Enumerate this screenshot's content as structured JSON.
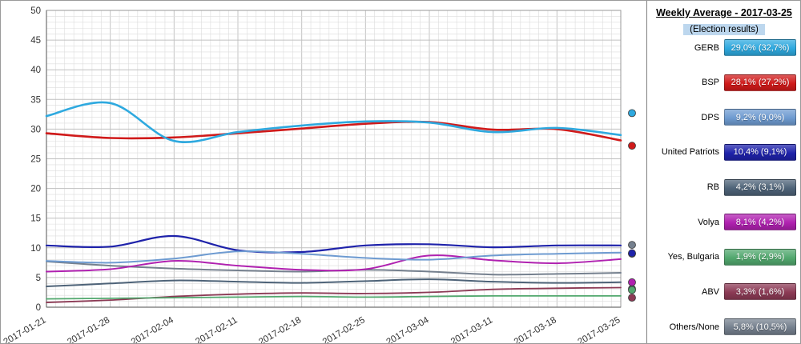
{
  "legend": {
    "title": "Weekly Average - 2017-03-25",
    "subtitle": "(Election results)",
    "entries": [
      {
        "label": "GERB",
        "value": "29,0% (32,7%)"
      },
      {
        "label": "BSP",
        "value": "28,1% (27,2%)"
      },
      {
        "label": "DPS",
        "value": "9,2% (9,0%)"
      },
      {
        "label": "United Patriots",
        "value": "10,4% (9,1%)"
      },
      {
        "label": "RB",
        "value": "4,2% (3,1%)"
      },
      {
        "label": "Volya",
        "value": "8,1% (4,2%)"
      },
      {
        "label": "Yes, Bulgaria",
        "value": "1,9% (2,9%)"
      },
      {
        "label": "ABV",
        "value": "3,3% (1,6%)"
      },
      {
        "label": "Others/None",
        "value": "5,8% (10,5%)"
      }
    ]
  },
  "chart_data": {
    "type": "line",
    "title": "Weekly Average - 2017-03-25",
    "x": [
      "2017-01-21",
      "2017-01-28",
      "2017-02-04",
      "2017-02-11",
      "2017-02-18",
      "2017-02-25",
      "2017-03-04",
      "2017-03-11",
      "2017-03-18",
      "2017-03-25"
    ],
    "ylim": [
      0,
      50
    ],
    "ytick_step": 5,
    "grid": true,
    "legend_position": "right",
    "series": [
      {
        "name": "GERB",
        "color": "#2EA9DF",
        "width": 2.6,
        "values": [
          32.2,
          34.4,
          28.0,
          29.5,
          30.6,
          31.3,
          31.1,
          29.5,
          30.2,
          29.0
        ],
        "result": 32.7
      },
      {
        "name": "BSP",
        "color": "#D01A1A",
        "width": 2.6,
        "values": [
          29.3,
          28.5,
          28.6,
          29.3,
          30.1,
          30.9,
          31.2,
          29.9,
          30.0,
          28.1
        ],
        "result": 27.2
      },
      {
        "name": "DPS",
        "color": "#6E9BD1",
        "width": 2.0,
        "values": [
          7.8,
          7.5,
          8.2,
          9.4,
          9.0,
          8.3,
          8.0,
          8.7,
          9.0,
          9.2
        ],
        "result": 9.0
      },
      {
        "name": "United Patriots",
        "color": "#1E22AA",
        "width": 2.2,
        "values": [
          10.4,
          10.2,
          12.0,
          9.6,
          9.3,
          10.4,
          10.6,
          10.1,
          10.4,
          10.4
        ],
        "result": 9.1
      },
      {
        "name": "RB",
        "color": "#4E6378",
        "width": 2.0,
        "values": [
          3.5,
          4.0,
          4.5,
          4.3,
          4.1,
          4.4,
          4.7,
          4.3,
          4.1,
          4.2
        ],
        "result": 3.1
      },
      {
        "name": "Volya",
        "color": "#B021B0",
        "width": 2.0,
        "values": [
          6.0,
          6.4,
          7.8,
          7.0,
          6.3,
          6.4,
          8.7,
          7.9,
          7.4,
          8.1
        ],
        "result": 4.2
      },
      {
        "name": "Yes, Bulgaria",
        "color": "#52A86E",
        "width": 1.8,
        "values": [
          1.4,
          1.5,
          1.6,
          1.7,
          1.8,
          1.7,
          1.8,
          1.9,
          1.9,
          1.9
        ],
        "result": 2.9
      },
      {
        "name": "ABV",
        "color": "#8C3A55",
        "width": 1.8,
        "values": [
          0.8,
          1.2,
          1.8,
          2.2,
          2.4,
          2.3,
          2.5,
          3.0,
          3.2,
          3.3
        ],
        "result": 1.6
      },
      {
        "name": "Others/None",
        "color": "#75808E",
        "width": 2.0,
        "values": [
          7.7,
          7.0,
          6.5,
          6.2,
          6.0,
          6.3,
          6.0,
          5.5,
          5.6,
          5.8
        ],
        "result": 10.5
      }
    ]
  }
}
